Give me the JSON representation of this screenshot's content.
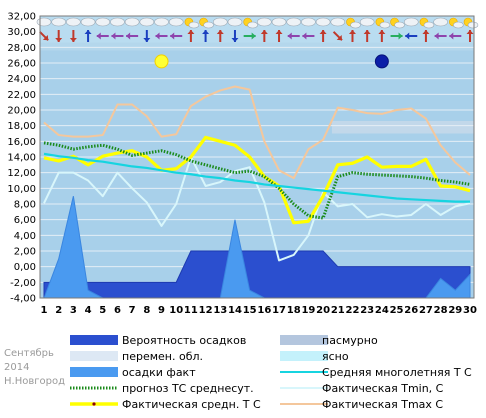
{
  "footer": {
    "month": "Сентябрь",
    "year": "2014",
    "city": "Н.Новгород"
  },
  "legend": [
    {
      "key": "precip_prob",
      "label": "Вероятность осадков",
      "kind": "box",
      "color": "#2b4fcf"
    },
    {
      "key": "overcast",
      "label": "пасмурно",
      "kind": "box",
      "color": "#b4c6de"
    },
    {
      "key": "variable",
      "label": "перемен. обл.",
      "kind": "box",
      "color": "#dde8f4"
    },
    {
      "key": "clear",
      "label": "ясно",
      "kind": "box",
      "color": "#c4f1fb"
    },
    {
      "key": "precip_fact",
      "label": "осадки факт",
      "kind": "box",
      "color": "#4a9af0"
    },
    {
      "key": "normal",
      "label": "Средняя многолетняя Т С",
      "kind": "line",
      "color": "#16d4e0"
    },
    {
      "key": "forecast",
      "label": "прогноз ТС среднесут.",
      "kind": "dotted",
      "color": "#1a8a1a"
    },
    {
      "key": "tmin",
      "label": "Фактическая Tmin, C",
      "kind": "line",
      "color": "#d8f6fb"
    },
    {
      "key": "tavg",
      "label": "Фактическая средн. Т С",
      "kind": "line",
      "color": "#ffff00"
    },
    {
      "key": "tmax",
      "label": "Фактическая Tmax C",
      "kind": "line",
      "color": "#f4c79c"
    }
  ],
  "icons": {
    "sun_day": 9,
    "moon_day": 24
  },
  "chart_data": {
    "type": "line",
    "title": "",
    "xlabel": "",
    "ylabel": "",
    "x": [
      1,
      2,
      3,
      4,
      5,
      6,
      7,
      8,
      9,
      10,
      11,
      12,
      13,
      14,
      15,
      16,
      17,
      18,
      19,
      20,
      21,
      22,
      23,
      24,
      25,
      26,
      27,
      28,
      29,
      30
    ],
    "xlim": [
      1,
      30
    ],
    "ylim": [
      -4,
      32
    ],
    "y_ticks": [
      "-4,00",
      "-2,00",
      "0,00",
      "2,00",
      "4,00",
      "6,00",
      "8,00",
      "10,00",
      "12,00",
      "14,00",
      "16,00",
      "18,00",
      "20,00",
      "22,00",
      "24,00",
      "26,00",
      "28,00",
      "30,00",
      "32,00"
    ],
    "series": [
      {
        "name": "Фактическая Tmax C",
        "color": "#f4c79c",
        "values": [
          18.4,
          16.8,
          16.6,
          16.6,
          16.8,
          20.7,
          20.7,
          19.2,
          16.6,
          16.9,
          20.5,
          21.7,
          22.5,
          23.0,
          22.6,
          16.0,
          12.3,
          11.3,
          15.0,
          16.2,
          20.3,
          20.0,
          19.6,
          19.5,
          20.0,
          20.2,
          18.9,
          15.5,
          13.3,
          11.7
        ]
      },
      {
        "name": "Фактическая Tmin, C",
        "color": "#d8f6fb",
        "values": [
          8.1,
          12.0,
          12.0,
          11.0,
          9.0,
          12.0,
          10.0,
          8.2,
          5.2,
          8.0,
          14.0,
          10.3,
          10.8,
          12.2,
          12.7,
          8.2,
          0.8,
          1.5,
          4.0,
          9.5,
          7.7,
          8.0,
          6.3,
          6.7,
          6.4,
          6.6,
          8.0,
          6.6,
          7.7,
          8.1
        ]
      },
      {
        "name": "Фактическая средн. Т С",
        "color": "#ffff00",
        "values": [
          13.9,
          13.5,
          14.1,
          13.0,
          14.1,
          14.5,
          14.8,
          14.0,
          12.3,
          12.5,
          14.0,
          16.5,
          16.0,
          15.5,
          14.0,
          11.5,
          10.3,
          5.6,
          5.8,
          9.0,
          13.0,
          13.2,
          14.0,
          12.7,
          12.8,
          12.8,
          13.7,
          10.3,
          10.2,
          9.7
        ]
      },
      {
        "name": "прогноз ТС среднесут.",
        "color": "#1a8a1a",
        "values": [
          15.8,
          15.5,
          15.0,
          15.3,
          15.5,
          15.0,
          14.2,
          14.5,
          14.8,
          14.3,
          13.5,
          13.0,
          12.5,
          12.0,
          12.2,
          11.5,
          10.0,
          8.0,
          6.5,
          6.2,
          11.5,
          12.0,
          11.8,
          11.7,
          11.6,
          11.5,
          11.3,
          11.0,
          10.8,
          10.5
        ]
      },
      {
        "name": "Средняя многолетняя Т С",
        "color": "#16d4e0",
        "values": [
          14.4,
          14.1,
          13.9,
          13.6,
          13.4,
          13.1,
          12.8,
          12.6,
          12.3,
          12.0,
          11.8,
          11.5,
          11.3,
          11.0,
          10.8,
          10.5,
          10.3,
          10.1,
          9.9,
          9.7,
          9.5,
          9.3,
          9.1,
          8.9,
          8.7,
          8.6,
          8.5,
          8.4,
          8.3,
          8.3
        ]
      }
    ],
    "precip_prob": [
      -2,
      -2,
      -2,
      -2,
      -2,
      -2,
      -2,
      -2,
      -2,
      -2,
      2,
      2,
      2,
      2,
      2,
      2,
      2,
      2,
      2,
      2,
      0,
      0,
      0,
      0,
      0,
      0,
      0,
      0,
      0,
      0
    ],
    "precip_fact": [
      -4,
      1.0,
      9.0,
      -3.0,
      -4,
      -4,
      -4,
      -4,
      -4,
      -4,
      -4,
      -4,
      -4,
      6.0,
      -3.0,
      -4,
      -4,
      -4,
      -4,
      -4,
      -4,
      -4,
      -4,
      -4,
      -4,
      -4,
      -4,
      -1.5,
      -3.0,
      -1.0
    ],
    "wind_dirs": [
      "se",
      "s",
      "s",
      "n",
      "w",
      "w",
      "w",
      "s",
      "w",
      "w",
      "n",
      "n",
      "n",
      "s",
      "e",
      "n",
      "n",
      "w",
      "w",
      "n",
      "se",
      "n",
      "n",
      "n",
      "e",
      "w",
      "n",
      "w",
      "w",
      "n"
    ],
    "wind_colors": [
      "#c0392b",
      "#c0392b",
      "#c0392b",
      "#1a3fbf",
      "#8e44ad",
      "#8e44ad",
      "#8e44ad",
      "#1a3fbf",
      "#8e44ad",
      "#8e44ad",
      "#c0392b",
      "#1a3fbf",
      "#c0392b",
      "#1a3fbf",
      "#27ae60",
      "#c0392b",
      "#c0392b",
      "#8e44ad",
      "#8e44ad",
      "#c0392b",
      "#c0392b",
      "#c0392b",
      "#c0392b",
      "#c0392b",
      "#27ae60",
      "#1a3fbf",
      "#c0392b",
      "#8e44ad",
      "#8e44ad",
      "#c0392b"
    ],
    "sky": [
      "cloud",
      "cloud",
      "cloud",
      "cloud",
      "cloud",
      "cloud",
      "cloud",
      "cloud",
      "cloud",
      "cloud",
      "sun",
      "sun",
      "cloud",
      "cloud",
      "sun",
      "cloud",
      "cloud",
      "cloud",
      "cloud",
      "cloud",
      "cloud",
      "sun",
      "cloud",
      "sun",
      "sun",
      "cloud",
      "sun",
      "cloud",
      "sun",
      "sun"
    ],
    "grid": true,
    "legend_position": "bottom"
  }
}
